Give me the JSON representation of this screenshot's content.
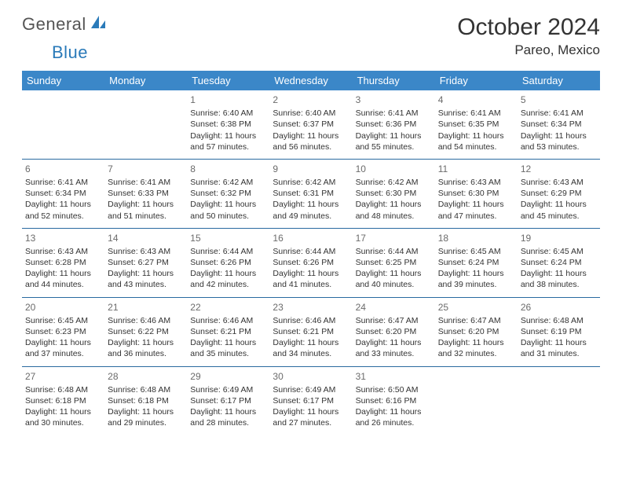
{
  "brand": {
    "part1": "General",
    "part2": "Blue"
  },
  "title": "October 2024",
  "location": "Pareo, Mexico",
  "day_headers": [
    "Sunday",
    "Monday",
    "Tuesday",
    "Wednesday",
    "Thursday",
    "Friday",
    "Saturday"
  ],
  "colors": {
    "header_bg": "#3b87c8",
    "header_text": "#ffffff",
    "row_border": "#2a6aa0",
    "body_text": "#333333",
    "daynum_text": "#6b6b6b",
    "logo_gray": "#555555",
    "logo_blue": "#2a7ab9"
  },
  "weeks": [
    [
      null,
      null,
      {
        "n": "1",
        "sr": "Sunrise: 6:40 AM",
        "ss": "Sunset: 6:38 PM",
        "dl": "Daylight: 11 hours and 57 minutes."
      },
      {
        "n": "2",
        "sr": "Sunrise: 6:40 AM",
        "ss": "Sunset: 6:37 PM",
        "dl": "Daylight: 11 hours and 56 minutes."
      },
      {
        "n": "3",
        "sr": "Sunrise: 6:41 AM",
        "ss": "Sunset: 6:36 PM",
        "dl": "Daylight: 11 hours and 55 minutes."
      },
      {
        "n": "4",
        "sr": "Sunrise: 6:41 AM",
        "ss": "Sunset: 6:35 PM",
        "dl": "Daylight: 11 hours and 54 minutes."
      },
      {
        "n": "5",
        "sr": "Sunrise: 6:41 AM",
        "ss": "Sunset: 6:34 PM",
        "dl": "Daylight: 11 hours and 53 minutes."
      }
    ],
    [
      {
        "n": "6",
        "sr": "Sunrise: 6:41 AM",
        "ss": "Sunset: 6:34 PM",
        "dl": "Daylight: 11 hours and 52 minutes."
      },
      {
        "n": "7",
        "sr": "Sunrise: 6:41 AM",
        "ss": "Sunset: 6:33 PM",
        "dl": "Daylight: 11 hours and 51 minutes."
      },
      {
        "n": "8",
        "sr": "Sunrise: 6:42 AM",
        "ss": "Sunset: 6:32 PM",
        "dl": "Daylight: 11 hours and 50 minutes."
      },
      {
        "n": "9",
        "sr": "Sunrise: 6:42 AM",
        "ss": "Sunset: 6:31 PM",
        "dl": "Daylight: 11 hours and 49 minutes."
      },
      {
        "n": "10",
        "sr": "Sunrise: 6:42 AM",
        "ss": "Sunset: 6:30 PM",
        "dl": "Daylight: 11 hours and 48 minutes."
      },
      {
        "n": "11",
        "sr": "Sunrise: 6:43 AM",
        "ss": "Sunset: 6:30 PM",
        "dl": "Daylight: 11 hours and 47 minutes."
      },
      {
        "n": "12",
        "sr": "Sunrise: 6:43 AM",
        "ss": "Sunset: 6:29 PM",
        "dl": "Daylight: 11 hours and 45 minutes."
      }
    ],
    [
      {
        "n": "13",
        "sr": "Sunrise: 6:43 AM",
        "ss": "Sunset: 6:28 PM",
        "dl": "Daylight: 11 hours and 44 minutes."
      },
      {
        "n": "14",
        "sr": "Sunrise: 6:43 AM",
        "ss": "Sunset: 6:27 PM",
        "dl": "Daylight: 11 hours and 43 minutes."
      },
      {
        "n": "15",
        "sr": "Sunrise: 6:44 AM",
        "ss": "Sunset: 6:26 PM",
        "dl": "Daylight: 11 hours and 42 minutes."
      },
      {
        "n": "16",
        "sr": "Sunrise: 6:44 AM",
        "ss": "Sunset: 6:26 PM",
        "dl": "Daylight: 11 hours and 41 minutes."
      },
      {
        "n": "17",
        "sr": "Sunrise: 6:44 AM",
        "ss": "Sunset: 6:25 PM",
        "dl": "Daylight: 11 hours and 40 minutes."
      },
      {
        "n": "18",
        "sr": "Sunrise: 6:45 AM",
        "ss": "Sunset: 6:24 PM",
        "dl": "Daylight: 11 hours and 39 minutes."
      },
      {
        "n": "19",
        "sr": "Sunrise: 6:45 AM",
        "ss": "Sunset: 6:24 PM",
        "dl": "Daylight: 11 hours and 38 minutes."
      }
    ],
    [
      {
        "n": "20",
        "sr": "Sunrise: 6:45 AM",
        "ss": "Sunset: 6:23 PM",
        "dl": "Daylight: 11 hours and 37 minutes."
      },
      {
        "n": "21",
        "sr": "Sunrise: 6:46 AM",
        "ss": "Sunset: 6:22 PM",
        "dl": "Daylight: 11 hours and 36 minutes."
      },
      {
        "n": "22",
        "sr": "Sunrise: 6:46 AM",
        "ss": "Sunset: 6:21 PM",
        "dl": "Daylight: 11 hours and 35 minutes."
      },
      {
        "n": "23",
        "sr": "Sunrise: 6:46 AM",
        "ss": "Sunset: 6:21 PM",
        "dl": "Daylight: 11 hours and 34 minutes."
      },
      {
        "n": "24",
        "sr": "Sunrise: 6:47 AM",
        "ss": "Sunset: 6:20 PM",
        "dl": "Daylight: 11 hours and 33 minutes."
      },
      {
        "n": "25",
        "sr": "Sunrise: 6:47 AM",
        "ss": "Sunset: 6:20 PM",
        "dl": "Daylight: 11 hours and 32 minutes."
      },
      {
        "n": "26",
        "sr": "Sunrise: 6:48 AM",
        "ss": "Sunset: 6:19 PM",
        "dl": "Daylight: 11 hours and 31 minutes."
      }
    ],
    [
      {
        "n": "27",
        "sr": "Sunrise: 6:48 AM",
        "ss": "Sunset: 6:18 PM",
        "dl": "Daylight: 11 hours and 30 minutes."
      },
      {
        "n": "28",
        "sr": "Sunrise: 6:48 AM",
        "ss": "Sunset: 6:18 PM",
        "dl": "Daylight: 11 hours and 29 minutes."
      },
      {
        "n": "29",
        "sr": "Sunrise: 6:49 AM",
        "ss": "Sunset: 6:17 PM",
        "dl": "Daylight: 11 hours and 28 minutes."
      },
      {
        "n": "30",
        "sr": "Sunrise: 6:49 AM",
        "ss": "Sunset: 6:17 PM",
        "dl": "Daylight: 11 hours and 27 minutes."
      },
      {
        "n": "31",
        "sr": "Sunrise: 6:50 AM",
        "ss": "Sunset: 6:16 PM",
        "dl": "Daylight: 11 hours and 26 minutes."
      },
      null,
      null
    ]
  ]
}
